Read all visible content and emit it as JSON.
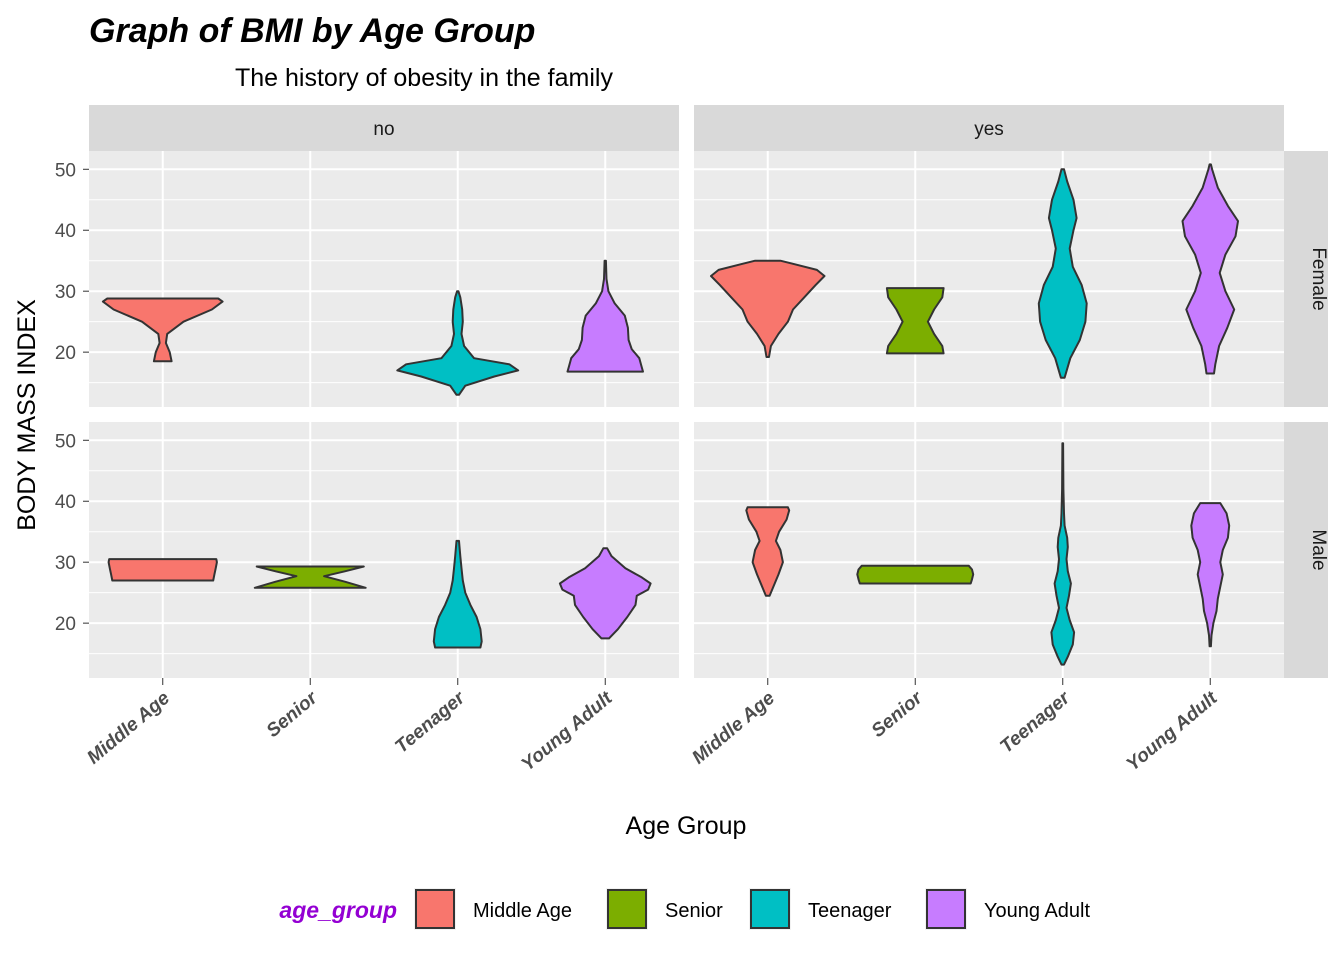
{
  "chart_data": {
    "type": "violin",
    "title": "Graph of BMI by Age Group",
    "subtitle": "The history of obesity in the family",
    "xlabel": "Age Group",
    "ylabel": "BODY MASS INDEX",
    "categories": [
      "Middle Age",
      "Senior",
      "Teenager",
      "Young Adult"
    ],
    "ylim": [
      11,
      53
    ],
    "yticks": [
      20,
      30,
      40,
      50
    ],
    "grid": true,
    "facet_cols": [
      "no",
      "yes"
    ],
    "facet_rows": [
      "Female",
      "Male"
    ],
    "colors": {
      "Middle Age": "#F8766D",
      "Senior": "#7CAE00",
      "Teenager": "#00BFC4",
      "Young Adult": "#C77CFF"
    },
    "legend": {
      "title": "age_group",
      "title_color": "#9400D3",
      "position": "bottom",
      "entries": [
        "Middle Age",
        "Senior",
        "Teenager",
        "Young Adult"
      ]
    },
    "panels": [
      {
        "col": "no",
        "row": "Female",
        "violins": [
          {
            "category": "Middle Age",
            "profile": [
              [
                18.5,
                0.14
              ],
              [
                20,
                0.11
              ],
              [
                21.5,
                0.05
              ],
              [
                23,
                0.07
              ],
              [
                25,
                0.33
              ],
              [
                27,
                0.78
              ],
              [
                28.3,
                0.95
              ],
              [
                28.8,
                0.88
              ]
            ]
          },
          {
            "category": "Teenager",
            "profile": [
              [
                13,
                0.02
              ],
              [
                14.5,
                0.12
              ],
              [
                16,
                0.58
              ],
              [
                17,
                0.96
              ],
              [
                18,
                0.82
              ],
              [
                19,
                0.26
              ],
              [
                21,
                0.1
              ],
              [
                23,
                0.06
              ],
              [
                25,
                0.08
              ],
              [
                27,
                0.07
              ],
              [
                29,
                0.04
              ],
              [
                30,
                0.01
              ]
            ]
          },
          {
            "category": "Young Adult",
            "profile": [
              [
                16.8,
                0.6
              ],
              [
                17.5,
                0.58
              ],
              [
                19,
                0.54
              ],
              [
                20.5,
                0.42
              ],
              [
                22,
                0.37
              ],
              [
                24,
                0.36
              ],
              [
                26,
                0.31
              ],
              [
                28,
                0.15
              ],
              [
                30,
                0.05
              ],
              [
                32,
                0.02
              ],
              [
                35,
                0.01
              ]
            ]
          }
        ]
      },
      {
        "col": "yes",
        "row": "Female",
        "violins": [
          {
            "category": "Middle Age",
            "profile": [
              [
                19.2,
                0.02
              ],
              [
                21,
                0.05
              ],
              [
                23,
                0.17
              ],
              [
                25,
                0.32
              ],
              [
                27,
                0.4
              ],
              [
                29,
                0.58
              ],
              [
                31,
                0.76
              ],
              [
                32.5,
                0.9
              ],
              [
                33.5,
                0.78
              ],
              [
                34.5,
                0.4
              ],
              [
                35,
                0.2
              ]
            ]
          },
          {
            "category": "Senior",
            "profile": [
              [
                19.8,
                0.45
              ],
              [
                21,
                0.43
              ],
              [
                23,
                0.3
              ],
              [
                25,
                0.2
              ],
              [
                27,
                0.3
              ],
              [
                29,
                0.43
              ],
              [
                30.5,
                0.45
              ]
            ]
          },
          {
            "category": "Teenager",
            "profile": [
              [
                15.8,
                0.03
              ],
              [
                19,
                0.12
              ],
              [
                22,
                0.27
              ],
              [
                25,
                0.36
              ],
              [
                28,
                0.38
              ],
              [
                31,
                0.3
              ],
              [
                34,
                0.16
              ],
              [
                37,
                0.11
              ],
              [
                40,
                0.17
              ],
              [
                42,
                0.22
              ],
              [
                45,
                0.17
              ],
              [
                48,
                0.07
              ],
              [
                50,
                0.02
              ]
            ]
          },
          {
            "category": "Young Adult",
            "profile": [
              [
                16.5,
                0.06
              ],
              [
                18,
                0.08
              ],
              [
                21,
                0.14
              ],
              [
                24,
                0.27
              ],
              [
                27,
                0.38
              ],
              [
                30,
                0.24
              ],
              [
                33,
                0.15
              ],
              [
                36,
                0.24
              ],
              [
                39,
                0.4
              ],
              [
                41.5,
                0.44
              ],
              [
                44,
                0.28
              ],
              [
                47,
                0.12
              ],
              [
                50,
                0.03
              ],
              [
                50.8,
                0.01
              ]
            ]
          }
        ]
      },
      {
        "col": "no",
        "row": "Male",
        "violins": [
          {
            "category": "Middle Age",
            "profile": [
              [
                27,
                0.8
              ],
              [
                28,
                0.82
              ],
              [
                29,
                0.84
              ],
              [
                30,
                0.86
              ],
              [
                30.5,
                0.85
              ]
            ]
          },
          {
            "category": "Senior",
            "profile": [
              [
                25.8,
                0.88
              ],
              [
                26.8,
                0.55
              ],
              [
                27.7,
                0.22
              ],
              [
                28.5,
                0.55
              ],
              [
                29.3,
                0.85
              ]
            ]
          },
          {
            "category": "Teenager",
            "profile": [
              [
                16,
                0.36
              ],
              [
                17,
                0.38
              ],
              [
                19,
                0.36
              ],
              [
                21,
                0.3
              ],
              [
                23,
                0.2
              ],
              [
                25,
                0.12
              ],
              [
                27,
                0.08
              ],
              [
                29,
                0.06
              ],
              [
                31,
                0.04
              ],
              [
                33.5,
                0.02
              ]
            ]
          },
          {
            "category": "Young Adult",
            "profile": [
              [
                17.5,
                0.06
              ],
              [
                19,
                0.2
              ],
              [
                21,
                0.35
              ],
              [
                23,
                0.48
              ],
              [
                24.5,
                0.5
              ],
              [
                25.5,
                0.68
              ],
              [
                26.5,
                0.72
              ],
              [
                27.5,
                0.58
              ],
              [
                29,
                0.32
              ],
              [
                31,
                0.1
              ],
              [
                32.3,
                0.03
              ]
            ]
          }
        ]
      },
      {
        "col": "yes",
        "row": "Male",
        "violins": [
          {
            "category": "Middle Age",
            "profile": [
              [
                24.5,
                0.03
              ],
              [
                26,
                0.09
              ],
              [
                28,
                0.17
              ],
              [
                30,
                0.24
              ],
              [
                32,
                0.2
              ],
              [
                33.5,
                0.13
              ],
              [
                35,
                0.18
              ],
              [
                37,
                0.3
              ],
              [
                38.5,
                0.34
              ],
              [
                39,
                0.32
              ]
            ]
          },
          {
            "category": "Senior",
            "profile": [
              [
                26.5,
                0.88
              ],
              [
                27.2,
                0.9
              ],
              [
                28,
                0.92
              ],
              [
                28.8,
                0.9
              ],
              [
                29.4,
                0.85
              ]
            ]
          },
          {
            "category": "Teenager",
            "profile": [
              [
                13.2,
                0.02
              ],
              [
                14.5,
                0.08
              ],
              [
                16.5,
                0.16
              ],
              [
                18.5,
                0.18
              ],
              [
                20.5,
                0.11
              ],
              [
                22.5,
                0.06
              ],
              [
                24.5,
                0.1
              ],
              [
                26.5,
                0.13
              ],
              [
                28.5,
                0.08
              ],
              [
                30.5,
                0.06
              ],
              [
                32.5,
                0.08
              ],
              [
                34,
                0.07
              ],
              [
                36,
                0.03
              ],
              [
                38,
                0.02
              ],
              [
                42,
                0.01
              ],
              [
                49.5,
                0.005
              ]
            ]
          },
          {
            "category": "Young Adult",
            "profile": [
              [
                16.2,
                0.01
              ],
              [
                18,
                0.02
              ],
              [
                20,
                0.05
              ],
              [
                22,
                0.1
              ],
              [
                24,
                0.12
              ],
              [
                26,
                0.16
              ],
              [
                28,
                0.2
              ],
              [
                30,
                0.16
              ],
              [
                32,
                0.2
              ],
              [
                34,
                0.28
              ],
              [
                36,
                0.3
              ],
              [
                38,
                0.26
              ],
              [
                39.7,
                0.16
              ]
            ]
          }
        ]
      }
    ]
  }
}
